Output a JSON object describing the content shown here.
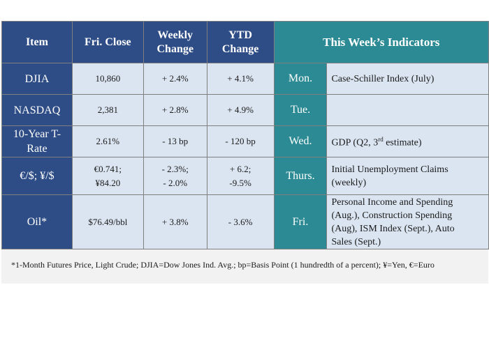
{
  "headers": {
    "item": "Item",
    "close_line1": "Fri. Close",
    "weekly_line1": "Weekly",
    "weekly_line2": "Change",
    "ytd_line1": "YTD",
    "ytd_line2": "Change",
    "indicators": "This Week’s Indicators"
  },
  "rows": [
    {
      "item": "DJIA",
      "close": "10,860",
      "weekly": "+ 2.4%",
      "ytd": "+ 4.1%",
      "day": "Mon.",
      "indicator": "Case-Schiller Index (July)"
    },
    {
      "item": "NASDAQ",
      "close": "2,381",
      "weekly": "+ 2.8%",
      "ytd": "+ 4.9%",
      "day": "Tue.",
      "indicator": ""
    },
    {
      "item_line1": "10-Year T-",
      "item_line2": "Rate",
      "close": "2.61%",
      "weekly": "- 13 bp",
      "ytd": "- 120 bp",
      "day": "Wed.",
      "indicator_pre": "GDP (Q2, 3",
      "indicator_sup": "rd",
      "indicator_post": " estimate)"
    },
    {
      "item": "€/$; ¥/$",
      "close_line1": "€0.741;",
      "close_line2": "¥84.20",
      "weekly_line1": "- 2.3%;",
      "weekly_line2": "- 2.0%",
      "ytd_line1": "+ 6.2;",
      "ytd_line2": "-9.5%",
      "day": "Thurs.",
      "indicator_line1": "Initial Unemployment Claims",
      "indicator_line2": "(weekly)"
    },
    {
      "item": "Oil*",
      "close": "$76.49/bbl",
      "weekly": "+ 3.8%",
      "ytd": "- 3.6%",
      "day": "Fri.",
      "indicator_line1": "Personal Income and Spending",
      "indicator_line2": "(Aug.), Construction Spending",
      "indicator_line3": "(Aug), ISM Index (Sept.), Auto",
      "indicator_line4": "Sales (Sept.)"
    }
  ],
  "footnote": "*1-Month Futures Price, Light Crude; DJIA=Dow Jones Ind. Avg.; bp=Basis Point (1 hundredth of a percent); ¥=Yen, €=Euro"
}
